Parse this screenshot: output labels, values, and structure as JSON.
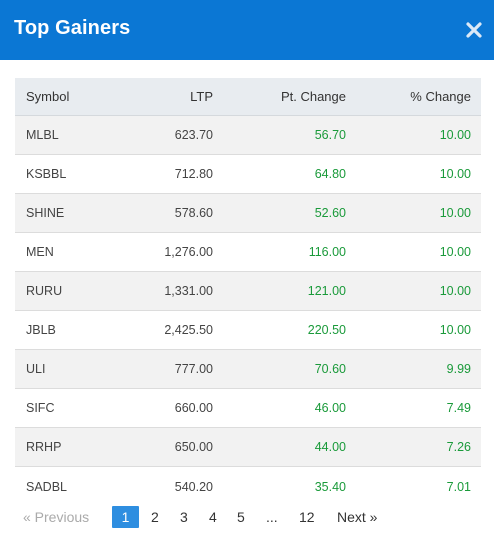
{
  "modal": {
    "title": "Top Gainers",
    "close_icon": "close-icon"
  },
  "table": {
    "headers": {
      "symbol": "Symbol",
      "ltp": "LTP",
      "pt_change": "Pt. Change",
      "pct_change": "% Change"
    },
    "rows": [
      {
        "symbol": "MLBL",
        "ltp": "623.70",
        "pt_change": "56.70",
        "pct_change": "10.00"
      },
      {
        "symbol": "KSBBL",
        "ltp": "712.80",
        "pt_change": "64.80",
        "pct_change": "10.00"
      },
      {
        "symbol": "SHINE",
        "ltp": "578.60",
        "pt_change": "52.60",
        "pct_change": "10.00"
      },
      {
        "symbol": "MEN",
        "ltp": "1,276.00",
        "pt_change": "116.00",
        "pct_change": "10.00"
      },
      {
        "symbol": "RURU",
        "ltp": "1,331.00",
        "pt_change": "121.00",
        "pct_change": "10.00"
      },
      {
        "symbol": "JBLB",
        "ltp": "2,425.50",
        "pt_change": "220.50",
        "pct_change": "10.00"
      },
      {
        "symbol": "ULI",
        "ltp": "777.00",
        "pt_change": "70.60",
        "pct_change": "9.99"
      },
      {
        "symbol": "SIFC",
        "ltp": "660.00",
        "pt_change": "46.00",
        "pct_change": "7.49"
      },
      {
        "symbol": "RRHP",
        "ltp": "650.00",
        "pt_change": "44.00",
        "pct_change": "7.26"
      },
      {
        "symbol": "SADBL",
        "ltp": "540.20",
        "pt_change": "35.40",
        "pct_change": "7.01"
      }
    ]
  },
  "pagination": {
    "previous": "«  Previous",
    "pages": [
      "1",
      "2",
      "3",
      "4",
      "5",
      "...",
      "12"
    ],
    "active_page": "1",
    "next": "Next  »"
  },
  "colors": {
    "header": "#0b77d4",
    "positive": "#1a9a3a",
    "active_page": "#2e8ee0"
  }
}
